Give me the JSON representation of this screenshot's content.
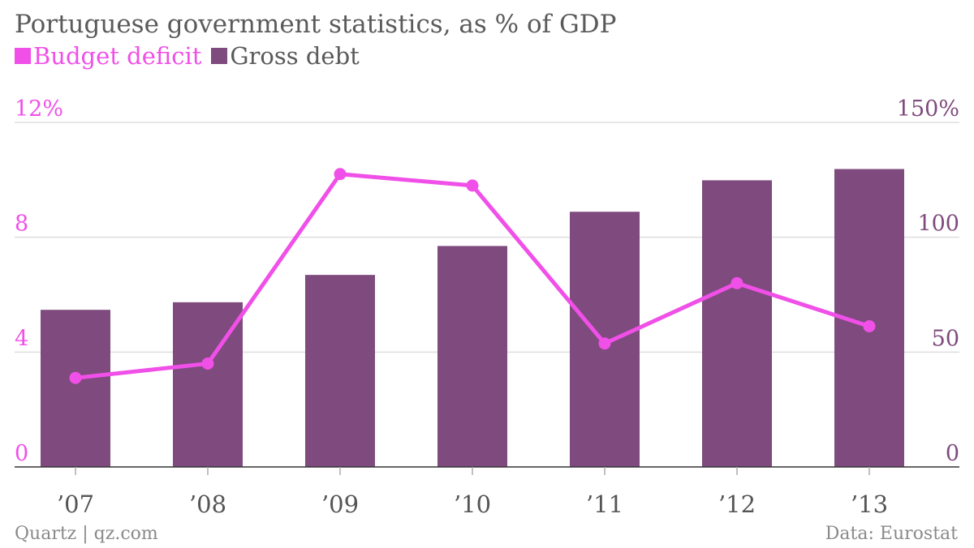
{
  "chart_data": {
    "type": "bar+line",
    "title": "Portuguese government statistics, as % of GDP",
    "categories": [
      "’07",
      "’08",
      "’09",
      "’10",
      "’11",
      "’12",
      "’13"
    ],
    "series": [
      {
        "name": "Budget deficit",
        "type": "line",
        "axis": "left",
        "color": "#f04fe8",
        "values": [
          3.1,
          3.6,
          10.2,
          9.8,
          4.3,
          6.4,
          4.9
        ]
      },
      {
        "name": "Gross debt",
        "type": "bar",
        "axis": "right",
        "color": "#7f4a7d",
        "values": [
          68.4,
          71.7,
          83.6,
          96.2,
          111.1,
          124.8,
          129.7
        ]
      }
    ],
    "left_axis": {
      "ticks": [
        "12%",
        "8",
        "4",
        "0"
      ],
      "tick_values": [
        12,
        8,
        4,
        0
      ],
      "range": [
        0,
        12
      ],
      "color": "#f04fe8"
    },
    "right_axis": {
      "ticks": [
        "150%",
        "100",
        "50",
        "0"
      ],
      "tick_values": [
        150,
        100,
        50,
        0
      ],
      "range": [
        0,
        150
      ],
      "color": "#7f4a7d"
    },
    "grid": true,
    "legend_position": "top-left"
  },
  "footer": {
    "source_left": "Quartz | qz.com",
    "source_right": "Data: Eurostat"
  }
}
